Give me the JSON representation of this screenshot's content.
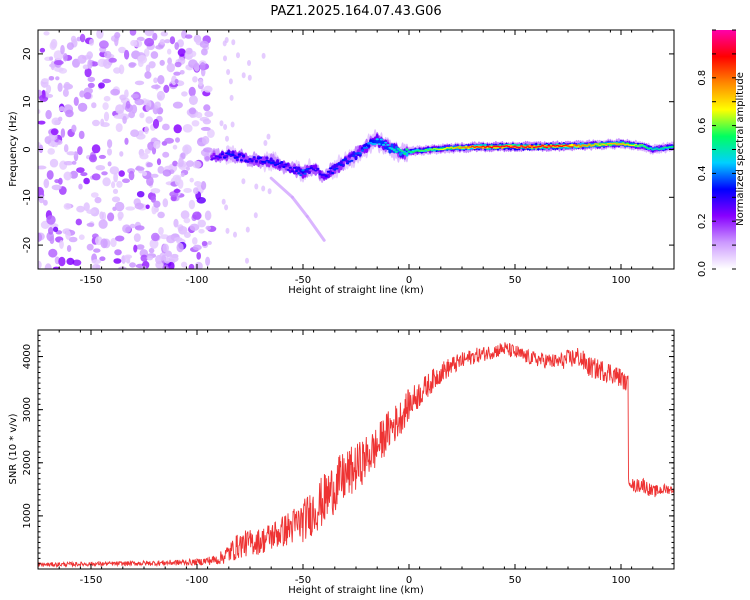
{
  "title": "PAZ1.2025.164.07.43.G06",
  "chart_data": [
    {
      "type": "heatmap",
      "xlabel": "Height of straight line (km)",
      "ylabel": "Frequency (Hz)",
      "xlim": [
        -175,
        125
      ],
      "ylim": [
        -25,
        25
      ],
      "x_ticks": [
        -150,
        -100,
        -50,
        0,
        50,
        100
      ],
      "y_ticks": [
        -20,
        -10,
        0,
        10,
        20
      ],
      "grid": false,
      "colorbar": {
        "label": "Normalized spectral amplitude",
        "range": [
          0,
          1
        ],
        "ticks": [
          "0.0",
          "0.2",
          "0.4",
          "0.6",
          "0.8"
        ],
        "colors": [
          "#ffffff",
          "#cc99ff",
          "#8800ff",
          "#0000ff",
          "#00d0ff",
          "#00ff60",
          "#ffff00",
          "#ff8800",
          "#ff0000",
          "#ff00aa"
        ]
      },
      "noise_region_x": [
        -175,
        -93
      ],
      "ridge": [
        {
          "x": -93,
          "f": -1.5,
          "a": 0.25
        },
        {
          "x": -85,
          "f": -1.0,
          "a": 0.35
        },
        {
          "x": -75,
          "f": -2.0,
          "a": 0.3
        },
        {
          "x": -65,
          "f": -2.5,
          "a": 0.35
        },
        {
          "x": -55,
          "f": -4.0,
          "a": 0.3
        },
        {
          "x": -50,
          "f": -5.0,
          "a": 0.4
        },
        {
          "x": -45,
          "f": -4.0,
          "a": 0.3
        },
        {
          "x": -40,
          "f": -5.5,
          "a": 0.3
        },
        {
          "x": -35,
          "f": -4.0,
          "a": 0.35
        },
        {
          "x": -28,
          "f": -2.0,
          "a": 0.35
        },
        {
          "x": -20,
          "f": 0.5,
          "a": 0.4
        },
        {
          "x": -15,
          "f": 2.0,
          "a": 0.45
        },
        {
          "x": -10,
          "f": 0.5,
          "a": 0.45
        },
        {
          "x": -5,
          "f": -0.5,
          "a": 0.5
        },
        {
          "x": 0,
          "f": -0.5,
          "a": 0.55
        },
        {
          "x": 10,
          "f": 0.0,
          "a": 0.6
        },
        {
          "x": 20,
          "f": 0.3,
          "a": 0.7
        },
        {
          "x": 30,
          "f": 0.5,
          "a": 0.85
        },
        {
          "x": 40,
          "f": 0.6,
          "a": 0.9
        },
        {
          "x": 50,
          "f": 0.6,
          "a": 0.92
        },
        {
          "x": 60,
          "f": 0.6,
          "a": 0.9
        },
        {
          "x": 70,
          "f": 0.7,
          "a": 0.9
        },
        {
          "x": 80,
          "f": 0.8,
          "a": 0.8
        },
        {
          "x": 90,
          "f": 1.0,
          "a": 0.7
        },
        {
          "x": 100,
          "f": 1.2,
          "a": 0.75
        },
        {
          "x": 110,
          "f": 0.8,
          "a": 0.6
        },
        {
          "x": 115,
          "f": 0.0,
          "a": 0.5
        },
        {
          "x": 125,
          "f": 0.6,
          "a": 0.55
        }
      ],
      "tail": [
        {
          "x": -65,
          "f": -6.0
        },
        {
          "x": -55,
          "f": -10.0
        },
        {
          "x": -48,
          "f": -14.0
        },
        {
          "x": -40,
          "f": -19.0
        }
      ]
    },
    {
      "type": "line",
      "xlabel": "Height of straight line (km)",
      "ylabel": "SNR (10 * v/v)",
      "xlim": [
        -175,
        125
      ],
      "ylim": [
        0,
        4500
      ],
      "x_ticks": [
        -150,
        -100,
        -50,
        0,
        50,
        100
      ],
      "y_ticks": [
        1000,
        2000,
        3000,
        4000
      ],
      "grid": false,
      "series": [
        {
          "color": "#ee3333",
          "x": [
            -175,
            -160,
            -140,
            -120,
            -100,
            -90,
            -85,
            -80,
            -75,
            -70,
            -65,
            -60,
            -55,
            -50,
            -45,
            -40,
            -35,
            -30,
            -25,
            -20,
            -15,
            -10,
            -5,
            0,
            5,
            10,
            15,
            20,
            25,
            30,
            35,
            40,
            45,
            50,
            55,
            60,
            65,
            70,
            75,
            80,
            85,
            90,
            95,
            100,
            102,
            104,
            106,
            110,
            115,
            120,
            125
          ],
          "values": [
            80,
            90,
            100,
            110,
            130,
            180,
            300,
            450,
            500,
            520,
            620,
            700,
            800,
            900,
            1100,
            1300,
            1550,
            1750,
            1900,
            2100,
            2300,
            2600,
            2800,
            3100,
            3300,
            3500,
            3700,
            3820,
            3920,
            4000,
            4050,
            4100,
            4150,
            4080,
            4000,
            3950,
            3920,
            3900,
            3950,
            4000,
            3800,
            3750,
            3700,
            3600,
            3500,
            1700,
            1550,
            1600,
            1450,
            1500,
            1500
          ],
          "noise": [
            40,
            40,
            40,
            50,
            60,
            100,
            200,
            250,
            250,
            250,
            280,
            300,
            350,
            400,
            450,
            500,
            500,
            500,
            450,
            420,
            400,
            380,
            350,
            300,
            260,
            220,
            200,
            180,
            160,
            150,
            140,
            140,
            140,
            140,
            140,
            140,
            150,
            150,
            180,
            200,
            200,
            200,
            200,
            180,
            150,
            120,
            120,
            150,
            120,
            100,
            80
          ]
        }
      ]
    }
  ]
}
